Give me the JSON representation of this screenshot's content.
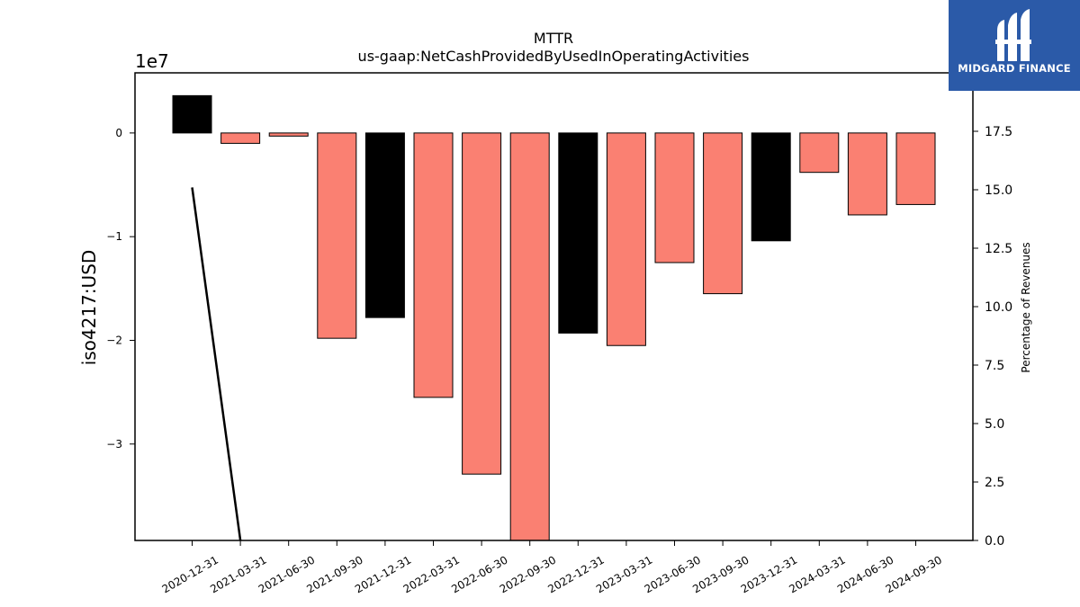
{
  "chart_data": {
    "type": "bar",
    "title": "MTTR",
    "subtitle": "us-gaap:NetCashProvidedByUsedInOperatingActivities",
    "ylabel": "iso4217:USD",
    "y_offset_label": "1e7",
    "y2label": "Percentage of Revenues",
    "ylim": [
      -3.93,
      0.58
    ],
    "y2lim": [
      0,
      20
    ],
    "yticks": [
      0,
      -1,
      -2,
      -3
    ],
    "ytick_labels": [
      "0",
      "−1",
      "−2",
      "−3"
    ],
    "y2ticks": [
      0,
      2.5,
      5,
      7.5,
      10,
      12.5,
      15,
      17.5
    ],
    "y2tick_labels": [
      "0.0",
      "2.5",
      "5.0",
      "7.5",
      "10.0",
      "12.5",
      "15.0",
      "17.5"
    ],
    "categories": [
      "2020-12-31",
      "2021-03-31",
      "2021-06-30",
      "2021-09-30",
      "2021-12-31",
      "2022-03-31",
      "2022-06-30",
      "2022-09-30",
      "2022-12-31",
      "2023-03-31",
      "2023-06-30",
      "2023-09-30",
      "2023-12-31",
      "2024-03-31",
      "2024-06-30",
      "2024-09-30"
    ],
    "series": [
      {
        "values": [
          0.36,
          -0.1,
          -0.03,
          -1.98,
          -1.78,
          -2.55,
          -3.29,
          -3.93,
          -1.93,
          -2.05,
          -1.25,
          -1.55,
          -1.04,
          -0.38,
          -0.79,
          -0.69
        ],
        "colors": [
          "#000000",
          "#fa8072",
          "#fa8072",
          "#fa8072",
          "#000000",
          "#fa8072",
          "#fa8072",
          "#fa8072",
          "#000000",
          "#fa8072",
          "#fa8072",
          "#fa8072",
          "#000000",
          "#fa8072",
          "#fa8072",
          "#fa8072"
        ]
      },
      {
        "type": "line",
        "axis": "right",
        "x": [
          "2020-12-31",
          "2021-03-31"
        ],
        "values": [
          15.1,
          0.0
        ],
        "color": "#000000"
      }
    ],
    "grid": false,
    "legend": "none"
  },
  "logo": {
    "text": "MIDGARD FINANCE",
    "background": "#2b5aa8"
  }
}
